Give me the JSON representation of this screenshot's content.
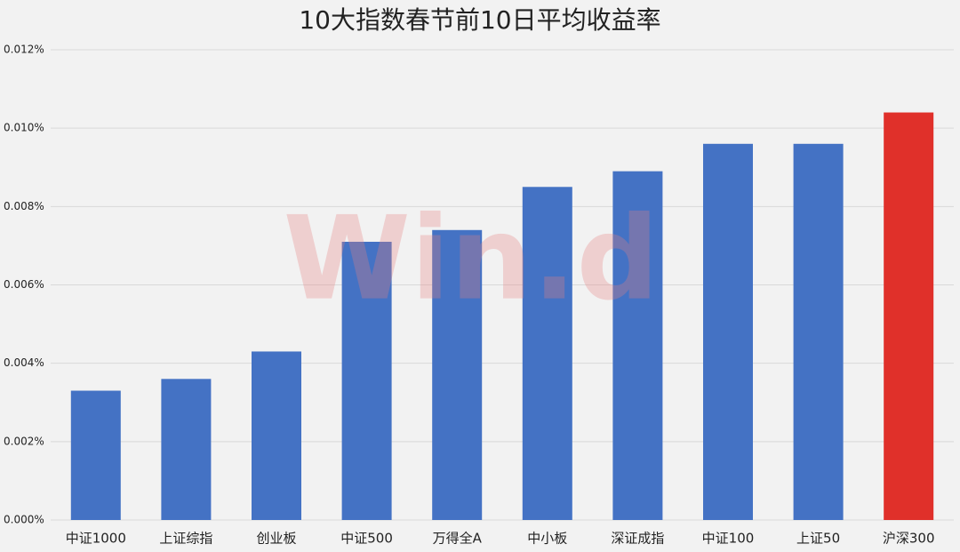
{
  "chart_data": {
    "type": "bar",
    "title": "10大指数春节前10日平均收益率",
    "watermark": "Win.d",
    "categories": [
      "中证1000",
      "上证综指",
      "创业板",
      "中证500",
      "万得全A",
      "中小板",
      "深证成指",
      "中证100",
      "上证50",
      "沪深300"
    ],
    "values": [
      0.0033,
      0.0036,
      0.0043,
      0.0071,
      0.0074,
      0.0085,
      0.0089,
      0.0096,
      0.0096,
      0.0104
    ],
    "colors": [
      "#4472c4",
      "#4472c4",
      "#4472c4",
      "#4472c4",
      "#4472c4",
      "#4472c4",
      "#4472c4",
      "#4472c4",
      "#4472c4",
      "#e0302a"
    ],
    "ylim": [
      0,
      0.012
    ],
    "yticks": [
      {
        "value": 0,
        "label": "0.000%"
      },
      {
        "value": 0.002,
        "label": "0.002%"
      },
      {
        "value": 0.004,
        "label": "0.004%"
      },
      {
        "value": 0.006,
        "label": "0.006%"
      },
      {
        "value": 0.008,
        "label": "0.008%"
      },
      {
        "value": 0.01,
        "label": "0.010%"
      },
      {
        "value": 0.012,
        "label": "0.012%"
      }
    ],
    "grid": true
  }
}
